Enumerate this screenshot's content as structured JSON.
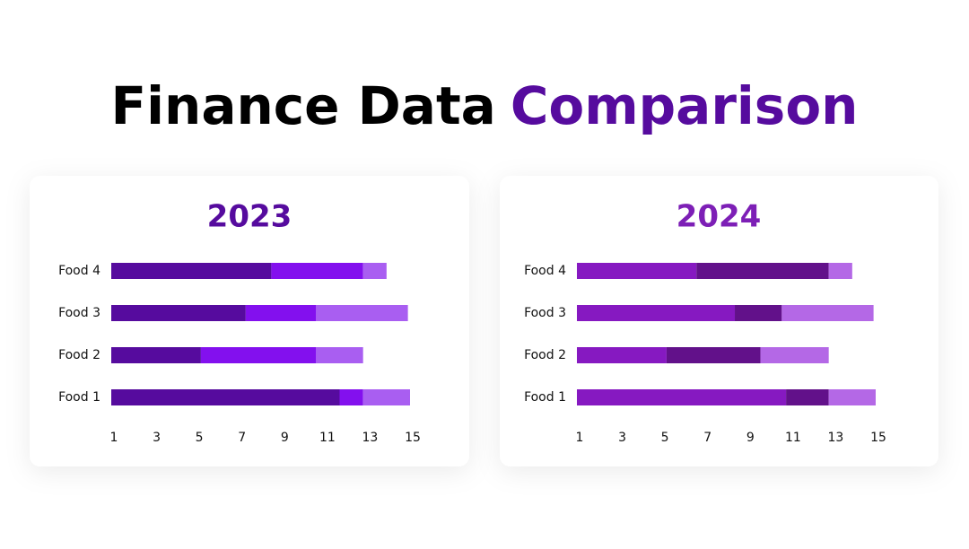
{
  "title": [
    "Finance Data",
    "Comparison"
  ],
  "chart_data": [
    {
      "type": "stacked-barh",
      "title": "2023",
      "title_color": "#560b9e",
      "categories": [
        "Food 1",
        "Food 2",
        "Food 3",
        "Food 4"
      ],
      "series": [
        {
          "color": "#560b9e",
          "values": [
            10.7,
            4.2,
            6.3,
            7.5
          ]
        },
        {
          "color": "#8310ee",
          "values": [
            1.1,
            5.4,
            3.3,
            4.3
          ]
        },
        {
          "color": "#a95ef1",
          "values": [
            2.2,
            2.2,
            4.3,
            1.1
          ]
        }
      ],
      "xlim": [
        1,
        15
      ],
      "xticks": [
        1,
        3,
        5,
        7,
        9,
        11,
        13,
        15
      ]
    },
    {
      "type": "stacked-barh",
      "title": "2024",
      "title_color": "#7d1fb6",
      "categories": [
        "Food 1",
        "Food 2",
        "Food 3",
        "Food 4"
      ],
      "series": [
        {
          "color": "#8619c1",
          "values": [
            9.8,
            4.2,
            7.4,
            5.6
          ]
        },
        {
          "color": "#62118a",
          "values": [
            2.0,
            4.4,
            2.2,
            6.2
          ]
        },
        {
          "color": "#b468e6",
          "values": [
            2.2,
            3.2,
            4.3,
            1.1
          ]
        }
      ],
      "xlim": [
        1,
        15
      ],
      "xticks": [
        1,
        3,
        5,
        7,
        9,
        11,
        13,
        15
      ]
    }
  ]
}
